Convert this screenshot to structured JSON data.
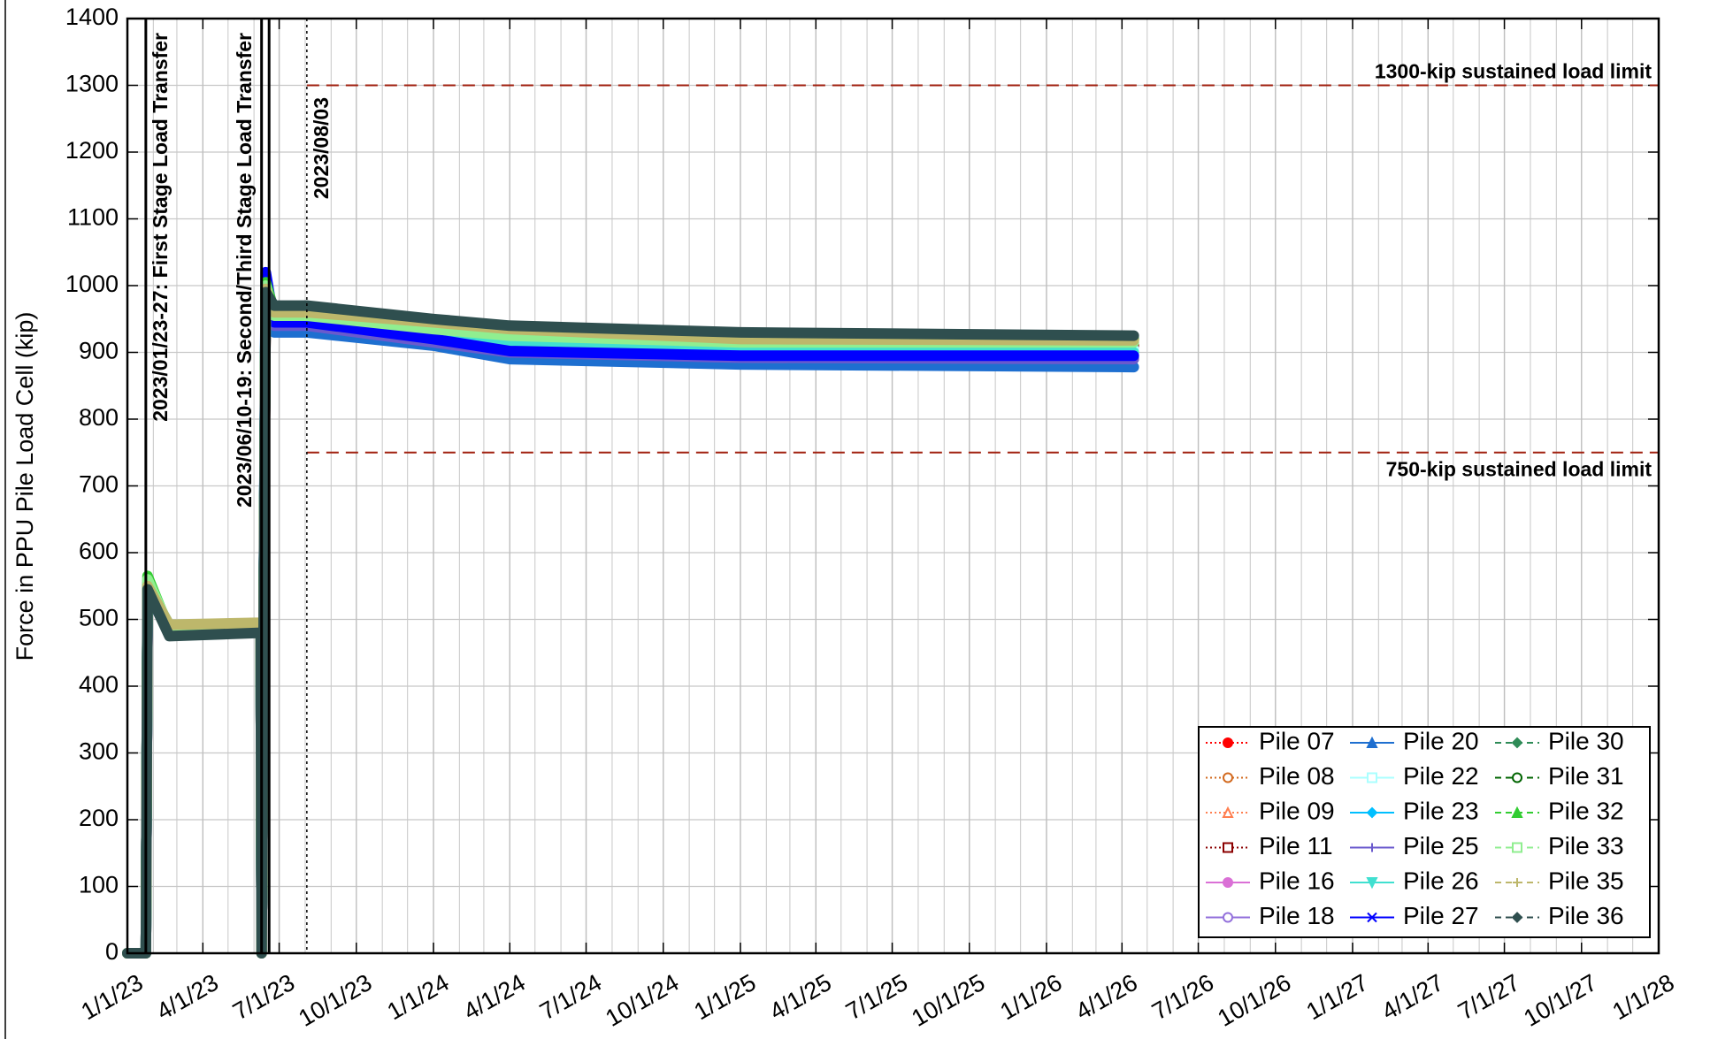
{
  "chart_data": {
    "type": "line",
    "ylabel": "Force in PPU Pile Load Cell (kip)",
    "ylim": [
      0,
      1400
    ],
    "yticks": [
      0,
      100,
      200,
      300,
      400,
      500,
      600,
      700,
      800,
      900,
      1000,
      1100,
      1200,
      1300,
      1400
    ],
    "xlim": [
      "2023-01-01",
      "2028-01-01"
    ],
    "xticks": [
      {
        "value": "2023-01-01",
        "label": "1/1/23"
      },
      {
        "value": "2023-04-01",
        "label": "4/1/23"
      },
      {
        "value": "2023-07-01",
        "label": "7/1/23"
      },
      {
        "value": "2023-10-01",
        "label": "10/1/23"
      },
      {
        "value": "2024-01-01",
        "label": "1/1/24"
      },
      {
        "value": "2024-04-01",
        "label": "4/1/24"
      },
      {
        "value": "2024-07-01",
        "label": "7/1/24"
      },
      {
        "value": "2024-10-01",
        "label": "10/1/24"
      },
      {
        "value": "2025-01-01",
        "label": "1/1/25"
      },
      {
        "value": "2025-04-01",
        "label": "4/1/25"
      },
      {
        "value": "2025-07-01",
        "label": "7/1/25"
      },
      {
        "value": "2025-10-01",
        "label": "10/1/25"
      },
      {
        "value": "2026-01-01",
        "label": "1/1/26"
      },
      {
        "value": "2026-04-01",
        "label": "4/1/26"
      },
      {
        "value": "2026-07-01",
        "label": "7/1/26"
      },
      {
        "value": "2026-10-01",
        "label": "10/1/26"
      },
      {
        "value": "2027-01-01",
        "label": "1/1/27"
      },
      {
        "value": "2027-04-01",
        "label": "4/1/27"
      },
      {
        "value": "2027-07-01",
        "label": "7/1/27"
      },
      {
        "value": "2027-10-01",
        "label": "10/1/27"
      },
      {
        "value": "2028-01-01",
        "label": "1/1/28"
      }
    ],
    "grid": true,
    "minor_grid": "monthly",
    "legend": "lower right",
    "vlines": [
      {
        "x": "2023-01-23",
        "label": "2023/01/23-27: First Stage Load Transfer",
        "style": "solid"
      },
      {
        "x": "2023-06-10",
        "label": "2023/06/10-19: Second/Third Stage Load Transfer",
        "style": "solid"
      },
      {
        "x": "2023-06-19",
        "style": "solid"
      },
      {
        "x": "2023-08-03",
        "label": "2023/08/03",
        "style": "dotted"
      }
    ],
    "reference_lines": [
      {
        "value": 1300,
        "label": "1300-kip sustained load limit",
        "start": "2023-08-03",
        "color": "#a0200f"
      },
      {
        "value": 750,
        "label": "750-kip sustained load limit",
        "start": "2023-08-03",
        "color": "#a0200f"
      }
    ],
    "x": [
      "2023-01-01",
      "2023-01-23",
      "2023-01-25",
      "2023-02-20",
      "2023-06-09",
      "2023-06-10",
      "2023-06-15",
      "2023-06-25",
      "2023-08-03",
      "2024-01-01",
      "2024-04-01",
      "2025-01-01",
      "2026-04-15"
    ],
    "series": [
      {
        "name": "Pile 07",
        "color": "#ff0000",
        "dash": "dotted",
        "marker": "circle-filled",
        "values": [
          0,
          0,
          545,
          488,
          490,
          0,
          995,
          955,
          955,
          935,
          925,
          915,
          912
        ]
      },
      {
        "name": "Pile 08",
        "color": "#d2691e",
        "dash": "dotted",
        "marker": "circle-open",
        "values": [
          0,
          0,
          548,
          490,
          492,
          0,
          990,
          955,
          955,
          935,
          925,
          915,
          915
        ]
      },
      {
        "name": "Pile 09",
        "color": "#ff7f50",
        "dash": "dotted",
        "marker": "triangle-open",
        "values": [
          0,
          0,
          540,
          485,
          488,
          0,
          985,
          950,
          950,
          930,
          920,
          912,
          910
        ]
      },
      {
        "name": "Pile 11",
        "color": "#8b0000",
        "dash": "dotted",
        "marker": "square-open",
        "values": [
          0,
          0,
          542,
          486,
          489,
          0,
          990,
          952,
          952,
          932,
          922,
          912,
          910
        ]
      },
      {
        "name": "Pile 16",
        "color": "#da70d6",
        "dash": "solid",
        "marker": "circle-filled",
        "values": [
          0,
          0,
          550,
          490,
          492,
          0,
          1000,
          945,
          945,
          925,
          915,
          905,
          905
        ]
      },
      {
        "name": "Pile 18",
        "color": "#9370db",
        "dash": "solid",
        "marker": "circle-open",
        "values": [
          0,
          0,
          545,
          487,
          490,
          0,
          995,
          940,
          940,
          920,
          905,
          895,
          895
        ]
      },
      {
        "name": "Pile 20",
        "color": "#1e6fd0",
        "dash": "solid",
        "marker": "triangle-filled",
        "values": [
          0,
          0,
          538,
          482,
          486,
          0,
          990,
          930,
          930,
          910,
          890,
          882,
          878
        ]
      },
      {
        "name": "Pile 22",
        "color": "#aaffff",
        "dash": "solid",
        "marker": "square-open",
        "values": [
          0,
          0,
          552,
          492,
          494,
          0,
          1010,
          950,
          950,
          930,
          915,
          905,
          905
        ]
      },
      {
        "name": "Pile 23",
        "color": "#00bfff",
        "dash": "solid",
        "marker": "diamond-filled",
        "values": [
          0,
          0,
          546,
          488,
          491,
          0,
          1005,
          945,
          945,
          920,
          905,
          895,
          892
        ]
      },
      {
        "name": "Pile 25",
        "color": "#6a5acd",
        "dash": "solid",
        "marker": "plus",
        "values": [
          0,
          0,
          544,
          487,
          490,
          0,
          1000,
          940,
          940,
          915,
          900,
          892,
          890
        ]
      },
      {
        "name": "Pile 26",
        "color": "#40e0d0",
        "dash": "solid",
        "marker": "triangle-down",
        "values": [
          0,
          0,
          550,
          490,
          493,
          0,
          1015,
          948,
          948,
          925,
          910,
          900,
          900
        ]
      },
      {
        "name": "Pile 27",
        "color": "#0000ff",
        "dash": "solid",
        "marker": "cross",
        "values": [
          0,
          0,
          548,
          489,
          492,
          0,
          1020,
          945,
          945,
          920,
          902,
          895,
          895
        ]
      },
      {
        "name": "Pile 30",
        "color": "#2e8b57",
        "dash": "dashed",
        "marker": "diamond-filled",
        "values": [
          0,
          0,
          555,
          482,
          484,
          0,
          1000,
          960,
          960,
          940,
          930,
          922,
          920
        ]
      },
      {
        "name": "Pile 31",
        "color": "#006400",
        "dash": "dashed",
        "marker": "circle-open",
        "values": [
          0,
          0,
          552,
          478,
          482,
          0,
          995,
          958,
          958,
          938,
          928,
          918,
          918
        ]
      },
      {
        "name": "Pile 32",
        "color": "#32cd32",
        "dash": "dashed",
        "marker": "triangle-filled",
        "values": [
          0,
          0,
          565,
          485,
          488,
          0,
          1005,
          962,
          962,
          942,
          932,
          922,
          920
        ]
      },
      {
        "name": "Pile 33",
        "color": "#90ee90",
        "dash": "dashed",
        "marker": "square-open",
        "values": [
          0,
          0,
          560,
          488,
          490,
          0,
          1000,
          955,
          955,
          935,
          925,
          915,
          915
        ]
      },
      {
        "name": "Pile 35",
        "color": "#bdb76b",
        "dash": "dashed",
        "marker": "plus",
        "values": [
          0,
          0,
          550,
          492,
          495,
          0,
          995,
          960,
          960,
          945,
          935,
          920,
          918
        ]
      },
      {
        "name": "Pile 36",
        "color": "#2f4f4f",
        "dash": "dashed",
        "marker": "diamond-filled",
        "values": [
          0,
          0,
          545,
          475,
          480,
          0,
          990,
          970,
          970,
          950,
          940,
          930,
          925
        ]
      }
    ]
  }
}
